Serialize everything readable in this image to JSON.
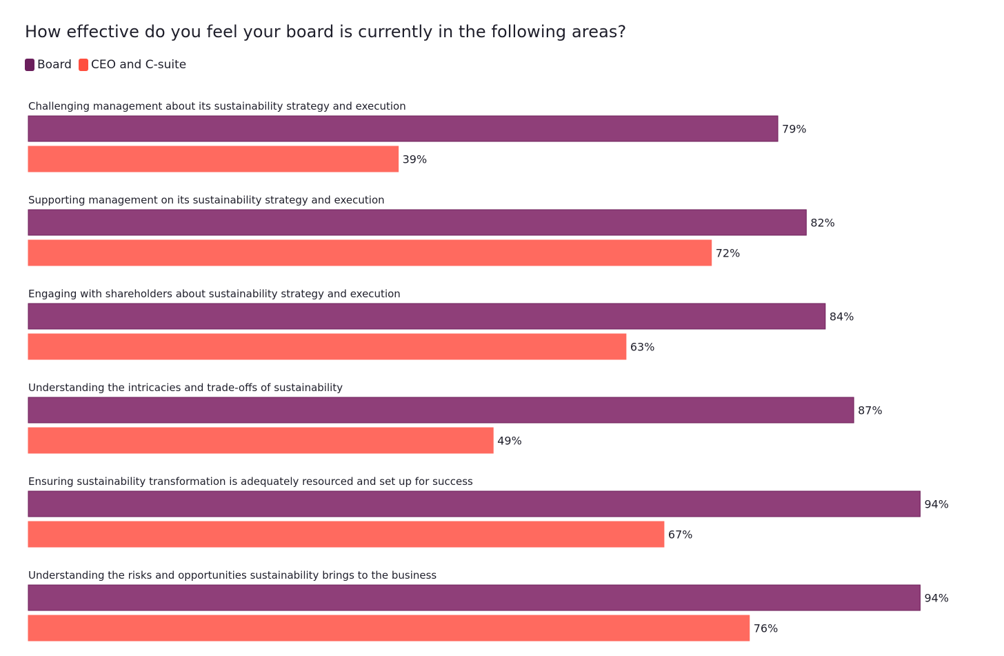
{
  "chart_data": {
    "type": "bar",
    "orientation": "horizontal",
    "title": "How effective do you feel your board is currently in the following areas?",
    "legend_position": "top-left",
    "xlim": [
      0,
      100
    ],
    "grid": false,
    "value_suffix": "%",
    "categories": [
      "Challenging management about its sustainability strategy and execution",
      "Supporting management on its sustainability strategy and execution",
      "Engaging with shareholders about sustainability strategy and execution",
      "Understanding the intricacies and trade-offs of sustainability",
      "Ensuring sustainability transformation is adequately resourced and set up for success",
      "Understanding the risks and opportunities sustainability brings to the business"
    ],
    "series": [
      {
        "name": "Board",
        "color": "#8f3f79",
        "border": "#6e1f5a",
        "values": [
          79,
          82,
          84,
          87,
          94,
          94
        ]
      },
      {
        "name": "CEO and C-suite",
        "color": "#ff6a5f",
        "border": "#ff6a5f",
        "values": [
          39,
          72,
          63,
          49,
          67,
          76
        ]
      }
    ]
  }
}
